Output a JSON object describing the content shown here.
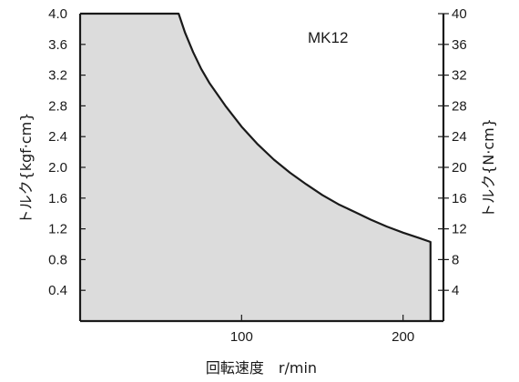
{
  "chart_data": {
    "type": "area",
    "title": "MK12",
    "xlabel": "回転速度　r/min",
    "ylabel_left": "トルク{kgf·cm}",
    "ylabel_right": "トルク{N·cm}",
    "xlim": [
      0,
      225
    ],
    "ylim_left": [
      0,
      4.0
    ],
    "ylim_right": [
      0,
      40
    ],
    "x_ticks": [
      100,
      200
    ],
    "y_ticks_left": [
      "0.4",
      "0.8",
      "1.2",
      "1.6",
      "2.0",
      "2.4",
      "2.8",
      "3.2",
      "3.6",
      "4.0"
    ],
    "y_ticks_right": [
      "4",
      "8",
      "12",
      "16",
      "20",
      "24",
      "28",
      "32",
      "36",
      "40"
    ],
    "fill_color": "#dcdcdc",
    "line_color": "#1a1a1a",
    "series": [
      {
        "x": [
          0,
          61,
          65,
          70,
          75,
          80,
          90,
          100,
          110,
          120,
          130,
          140,
          150,
          160,
          170,
          180,
          190,
          200,
          210,
          217,
          217
        ],
        "y": [
          4.0,
          4.0,
          3.75,
          3.5,
          3.28,
          3.1,
          2.8,
          2.53,
          2.3,
          2.1,
          1.93,
          1.78,
          1.64,
          1.52,
          1.42,
          1.32,
          1.23,
          1.15,
          1.08,
          1.03,
          0
        ]
      }
    ]
  }
}
